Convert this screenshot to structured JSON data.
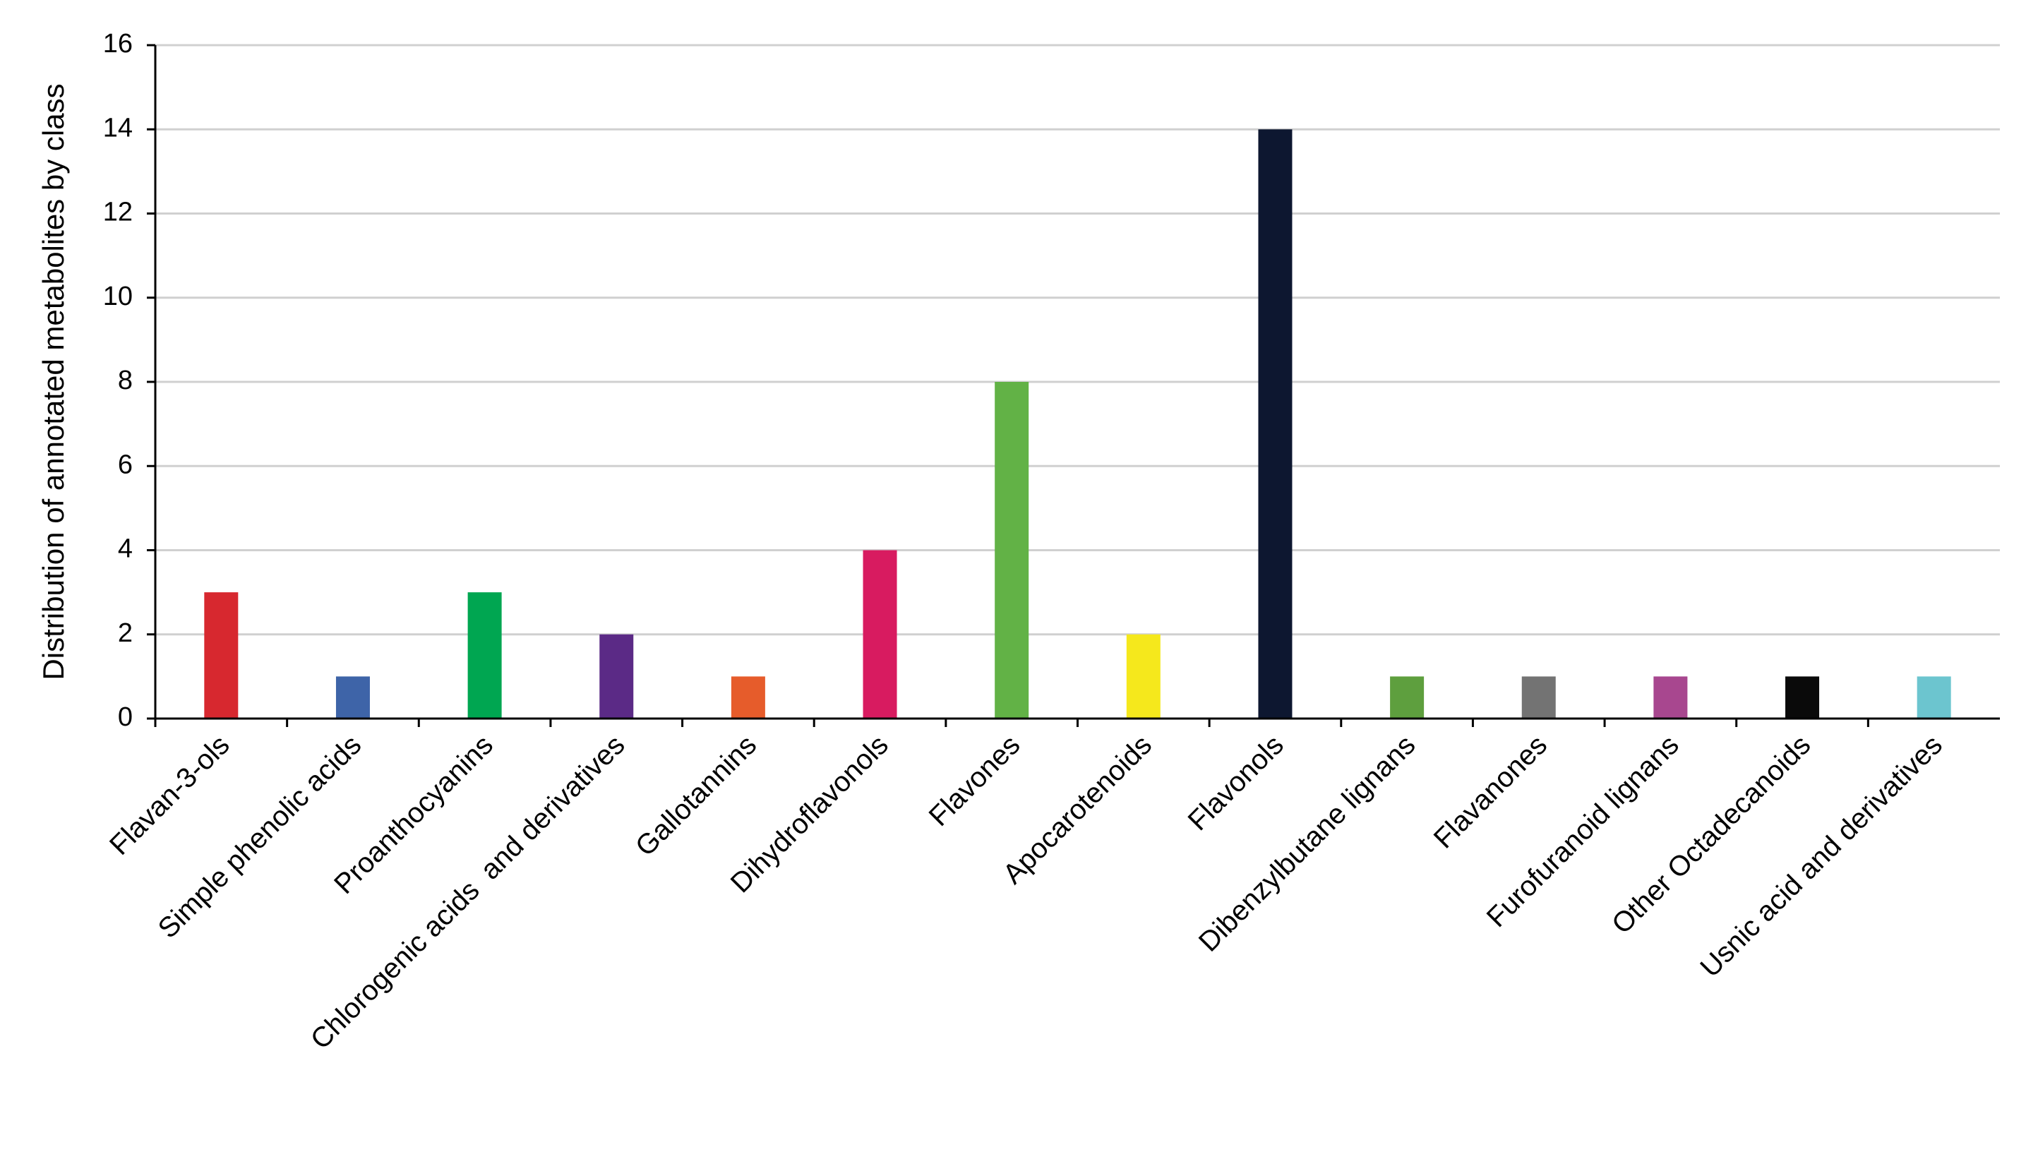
{
  "chart_data": {
    "type": "bar",
    "ylabel": "Distribution of annotated metabolites by class",
    "categories": [
      "Flavan-3-ols",
      "Simple phenolic acids",
      "Proanthocyanins",
      "Chlorogenic acids  and derivatives",
      "Gallotannins",
      "Dihydroflavonols",
      "Flavones",
      "Apocarotenoids",
      "Flavonols",
      "Dibenzylbutane lignans",
      "Flavanones",
      "Furofuranoid lignans",
      "Other Octadecanoids",
      "Usnic acid and derivatives"
    ],
    "values": [
      3,
      1,
      3,
      2,
      1,
      4,
      8,
      2,
      14,
      1,
      1,
      1,
      1,
      1
    ],
    "colors": [
      "#d7282f",
      "#3e64a8",
      "#00a651",
      "#5b2a86",
      "#e65c2b",
      "#d81b60",
      "#62b246",
      "#f5e81c",
      "#0d1730",
      "#5e9f3e",
      "#737373",
      "#a8478f",
      "#0a0a0a",
      "#6cc5cf"
    ],
    "ylim": [
      0,
      16
    ],
    "yticks": [
      0,
      2,
      4,
      6,
      8,
      10,
      12,
      14,
      16
    ],
    "grid": true
  }
}
